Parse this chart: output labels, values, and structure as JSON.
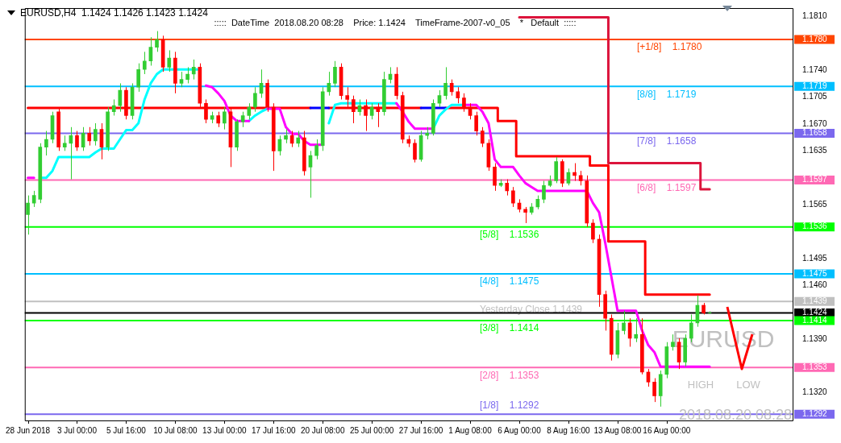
{
  "chart_data": {
    "type": "candlestick",
    "title": "EURUSD,H4  1.1424 1.1426 1.1423 1.1424",
    "annotations": [
      ":::::  DateTime  2018.08.20 08:28    Price: 1.1424    TimeFrame-2007-v0_05    *   Default  :::::",
      "EURUSD",
      "2018.08.20 08:28",
      "HIGH",
      "LOW"
    ],
    "categories": [
      "28 Jun 2018",
      null,
      null,
      null,
      null,
      null,
      null,
      null,
      "3 Jul 00:00",
      null,
      null,
      null,
      null,
      null,
      null,
      null,
      "5 Jul 16:00",
      null,
      null,
      null,
      null,
      null,
      null,
      null,
      "10 Jul 08:00",
      null,
      null,
      null,
      null,
      null,
      null,
      null,
      "13 Jul 00:00",
      null,
      null,
      null,
      null,
      null,
      null,
      null,
      "17 Jul 16:00",
      null,
      null,
      null,
      null,
      null,
      null,
      null,
      "20 Jul 08:00",
      null,
      null,
      null,
      null,
      null,
      null,
      null,
      "25 Jul 00:00",
      null,
      null,
      null,
      null,
      null,
      null,
      null,
      "27 Jul 16:00",
      null,
      null,
      null,
      null,
      null,
      null,
      null,
      "1 Aug 08:00",
      null,
      null,
      null,
      null,
      null,
      null,
      null,
      "6 Aug 00:00",
      null,
      null,
      null,
      null,
      null,
      null,
      null,
      "8 Aug 16:00",
      null,
      null,
      null,
      null,
      null,
      null,
      null,
      "13 Aug 08:00",
      null,
      null,
      null,
      null,
      null,
      null,
      null,
      "16 Aug 00:00",
      null,
      null,
      null,
      null,
      null,
      null,
      null,
      null,
      null,
      null,
      null,
      null,
      null,
      null,
      null,
      null,
      null,
      null,
      null,
      null
    ],
    "ohlc": [
      [
        1.1552,
        1.1577,
        1.1526,
        1.1567
      ],
      [
        1.1567,
        1.1583,
        1.1562,
        1.1577
      ],
      [
        1.1572,
        1.1645,
        1.1567,
        1.164
      ],
      [
        1.164,
        1.1661,
        1.1629,
        1.165
      ],
      [
        1.165,
        1.1686,
        1.1645,
        1.1681
      ],
      [
        1.1686,
        1.1692,
        1.1635,
        1.164
      ],
      [
        1.164,
        1.1655,
        1.1635,
        1.1645
      ],
      [
        1.1645,
        1.1666,
        1.1598,
        1.1655
      ],
      [
        1.1655,
        1.1661,
        1.1635,
        1.164
      ],
      [
        1.164,
        1.1666,
        1.1635,
        1.1658
      ],
      [
        1.1658,
        1.1666,
        1.1642,
        1.1648
      ],
      [
        1.1648,
        1.1671,
        1.1642,
        1.1663
      ],
      [
        1.1663,
        1.1671,
        1.1624,
        1.164
      ],
      [
        1.164,
        1.1692,
        1.1635,
        1.1686
      ],
      [
        1.1686,
        1.1702,
        1.1681,
        1.1694
      ],
      [
        1.1694,
        1.1723,
        1.1686,
        1.1714
      ],
      [
        1.1714,
        1.1718,
        1.1676,
        1.1681
      ],
      [
        1.1681,
        1.1723,
        1.1676,
        1.1718
      ],
      [
        1.1718,
        1.1749,
        1.1712,
        1.1741
      ],
      [
        1.1741,
        1.1764,
        1.1735,
        1.1752
      ],
      [
        1.1752,
        1.1783,
        1.1746,
        1.177
      ],
      [
        1.177,
        1.1791,
        1.1764,
        1.178
      ],
      [
        1.178,
        1.1785,
        1.1738,
        1.1744
      ],
      [
        1.1744,
        1.1766,
        1.1738,
        1.1756
      ],
      [
        1.1756,
        1.1764,
        1.171,
        1.1723
      ],
      [
        1.1723,
        1.1738,
        1.1718,
        1.1728
      ],
      [
        1.1728,
        1.1744,
        1.1723,
        1.1735
      ],
      [
        1.1735,
        1.1754,
        1.1728,
        1.1744
      ],
      [
        1.1744,
        1.1749,
        1.1692,
        1.1697
      ],
      [
        1.1697,
        1.1702,
        1.1671,
        1.1676
      ],
      [
        1.1676,
        1.1686,
        1.1671,
        1.1681
      ],
      [
        1.1681,
        1.1686,
        1.1666,
        1.1671
      ],
      [
        1.1671,
        1.1692,
        1.1663,
        1.1686
      ],
      [
        1.1686,
        1.1692,
        1.1614,
        1.164
      ],
      [
        1.164,
        1.1676,
        1.1635,
        1.1673
      ],
      [
        1.1673,
        1.1686,
        1.1666,
        1.1681
      ],
      [
        1.1681,
        1.1697,
        1.1676,
        1.1692
      ],
      [
        1.1692,
        1.1718,
        1.1686,
        1.171
      ],
      [
        1.171,
        1.1741,
        1.1704,
        1.1723
      ],
      [
        1.1723,
        1.1728,
        1.1686,
        1.1692
      ],
      [
        1.1692,
        1.1697,
        1.1609,
        1.1635
      ],
      [
        1.1635,
        1.1655,
        1.1629,
        1.165
      ],
      [
        1.165,
        1.1663,
        1.1645,
        1.1655
      ],
      [
        1.1655,
        1.1661,
        1.164,
        1.1645
      ],
      [
        1.1645,
        1.1661,
        1.164,
        1.1652
      ],
      [
        1.1652,
        1.1661,
        1.1603,
        1.1609
      ],
      [
        1.1614,
        1.1635,
        1.1574,
        1.1629
      ],
      [
        1.1629,
        1.165,
        1.1624,
        1.1642
      ],
      [
        1.1642,
        1.1718,
        1.1635,
        1.1712
      ],
      [
        1.1712,
        1.1738,
        1.1707,
        1.1723
      ],
      [
        1.1723,
        1.1752,
        1.1718,
        1.1744
      ],
      [
        1.1744,
        1.1749,
        1.1702,
        1.1707
      ],
      [
        1.1707,
        1.1718,
        1.1692,
        1.1702
      ],
      [
        1.1702,
        1.1707,
        1.1671,
        1.1686
      ],
      [
        1.1686,
        1.1702,
        1.1681,
        1.1694
      ],
      [
        1.1694,
        1.1702,
        1.1661,
        1.1681
      ],
      [
        1.1681,
        1.1697,
        1.1676,
        1.1692
      ],
      [
        1.1692,
        1.1697,
        1.1666,
        1.1686
      ],
      [
        1.1686,
        1.1738,
        1.1681,
        1.1728
      ],
      [
        1.1728,
        1.1744,
        1.1723,
        1.1735
      ],
      [
        1.1735,
        1.1744,
        1.1702,
        1.1707
      ],
      [
        1.1707,
        1.1712,
        1.1645,
        1.165
      ],
      [
        1.165,
        1.1655,
        1.164,
        1.1645
      ],
      [
        1.1645,
        1.165,
        1.162,
        1.1624
      ],
      [
        1.1624,
        1.1661,
        1.1621,
        1.1655
      ],
      [
        1.1655,
        1.1666,
        1.165,
        1.1658
      ],
      [
        1.1658,
        1.1702,
        1.1655,
        1.1697
      ],
      [
        1.1697,
        1.1714,
        1.1692,
        1.1707
      ],
      [
        1.1707,
        1.1744,
        1.1702,
        1.1723
      ],
      [
        1.1723,
        1.1728,
        1.1707,
        1.1712
      ],
      [
        1.1712,
        1.1718,
        1.1697,
        1.1704
      ],
      [
        1.1704,
        1.171,
        1.1686,
        1.1692
      ],
      [
        1.1692,
        1.1697,
        1.1676,
        1.1681
      ],
      [
        1.1681,
        1.1686,
        1.1655,
        1.1661
      ],
      [
        1.1661,
        1.1666,
        1.164,
        1.1645
      ],
      [
        1.1645,
        1.165,
        1.1609,
        1.1614
      ],
      [
        1.1614,
        1.1619,
        1.1583,
        1.159
      ],
      [
        1.159,
        1.1598,
        1.1588,
        1.1593
      ],
      [
        1.1593,
        1.1598,
        1.1577,
        1.1583
      ],
      [
        1.1583,
        1.1588,
        1.1562,
        1.1567
      ],
      [
        1.1567,
        1.1572,
        1.1555,
        1.1559
      ],
      [
        1.1559,
        1.1562,
        1.1541,
        1.1555
      ],
      [
        1.1555,
        1.1567,
        1.1552,
        1.1562
      ],
      [
        1.1562,
        1.1577,
        1.1559,
        1.1572
      ],
      [
        1.1572,
        1.1596,
        1.1567,
        1.159
      ],
      [
        1.159,
        1.1603,
        1.1588,
        1.1596
      ],
      [
        1.1596,
        1.1627,
        1.1593,
        1.1621
      ],
      [
        1.1621,
        1.1624,
        1.1588,
        1.1593
      ],
      [
        1.1593,
        1.1612,
        1.159,
        1.1607
      ],
      [
        1.1607,
        1.1619,
        1.1596,
        1.1603
      ],
      [
        1.1603,
        1.1609,
        1.159,
        1.1596
      ],
      [
        1.1596,
        1.1603,
        1.1536,
        1.1541
      ],
      [
        1.1541,
        1.1546,
        1.1515,
        1.152
      ],
      [
        1.152,
        1.1526,
        1.1432,
        1.1448
      ],
      [
        1.1448,
        1.1453,
        1.1401,
        1.1417
      ],
      [
        1.1417,
        1.1422,
        1.1362,
        1.137
      ],
      [
        1.137,
        1.1411,
        1.1365,
        1.1401
      ],
      [
        1.1401,
        1.1427,
        1.1396,
        1.1411
      ],
      [
        1.1411,
        1.1417,
        1.138,
        1.1391
      ],
      [
        1.1391,
        1.1417,
        1.1386,
        1.1396
      ],
      [
        1.1396,
        1.1417,
        1.1344,
        1.1347
      ],
      [
        1.1347,
        1.1351,
        1.1328,
        1.1334
      ],
      [
        1.1334,
        1.1339,
        1.1308,
        1.1316
      ],
      [
        1.1316,
        1.1349,
        1.1302,
        1.1344
      ],
      [
        1.1344,
        1.1386,
        1.1339,
        1.138
      ],
      [
        1.138,
        1.1396,
        1.1375,
        1.1386
      ],
      [
        1.1386,
        1.1391,
        1.1351,
        1.136
      ],
      [
        1.136,
        1.1396,
        1.1354,
        1.1391
      ],
      [
        1.1391,
        1.1422,
        1.1386,
        1.1411
      ],
      [
        1.1411,
        1.1447,
        1.1406,
        1.1434
      ],
      [
        1.1434,
        1.1437,
        1.1422,
        1.1424
      ],
      [
        1.1424,
        1.1426,
        1.1423,
        1.1424
      ],
      null,
      null,
      null,
      null,
      null,
      null,
      null,
      null,
      null,
      null,
      null,
      null,
      null
    ],
    "series": [
      {
        "type": "step",
        "color": "#ff0000",
        "values": [
          1.1691,
          1.1691,
          1.1691,
          1.1691,
          1.1691,
          1.1691,
          1.1691,
          1.1691,
          1.1691,
          1.1691,
          1.1691,
          1.1691,
          1.1691,
          1.1691,
          1.1691,
          1.1691,
          1.1691,
          1.1691,
          1.1691,
          1.1691,
          1.1691,
          1.1691,
          1.1691,
          1.1691,
          1.1691,
          1.1691,
          1.1691,
          1.1691,
          1.1691,
          1.1691,
          1.1691,
          1.1691,
          1.1691,
          1.1691,
          1.1691,
          1.1691,
          1.1691,
          1.1691,
          1.1691,
          1.1691,
          1.1691,
          1.1691,
          1.1691,
          1.1691,
          1.1691,
          1.1691,
          1.1691,
          null,
          null,
          1.1691,
          1.1691,
          1.1691,
          1.1691,
          1.1691,
          1.1691,
          1.1691,
          1.1691,
          1.1691,
          1.1691,
          1.1691,
          1.1691,
          1.1691,
          1.1691,
          1.1691,
          1.1691,
          null,
          null,
          null,
          1.1691,
          1.1691,
          1.1691,
          1.1691,
          1.1691,
          1.1691,
          1.1691,
          1.1691,
          1.1691,
          1.1674,
          1.1674,
          1.1674,
          1.1628,
          1.1628,
          1.1628,
          1.1628,
          1.1628,
          1.1628,
          1.1628,
          1.1628,
          1.1628,
          1.1628,
          1.1628,
          1.1628,
          1.1616,
          1.1616,
          1.1616,
          1.1517,
          1.1517,
          1.1517,
          1.1517,
          1.1517,
          1.1517,
          1.1448,
          1.1448,
          1.1448,
          1.1448,
          1.1448,
          1.1448,
          1.1448,
          1.1448,
          1.1448,
          1.1448,
          1.1448,
          null,
          null,
          null,
          null,
          null,
          null,
          null,
          null,
          null,
          null,
          null,
          null,
          null
        ]
      },
      {
        "type": "step",
        "color": "#0000ff",
        "values": [
          null,
          null,
          null,
          null,
          null,
          null,
          null,
          null,
          null,
          null,
          null,
          null,
          null,
          null,
          null,
          null,
          null,
          null,
          null,
          null,
          null,
          null,
          null,
          null,
          null,
          null,
          null,
          null,
          null,
          null,
          null,
          null,
          null,
          null,
          null,
          null,
          null,
          null,
          null,
          null,
          null,
          null,
          null,
          null,
          null,
          null,
          1.1691,
          1.1691,
          1.1691,
          1.1691,
          null,
          null,
          null,
          null,
          null,
          null,
          null,
          null,
          null,
          null,
          null,
          null,
          null,
          null,
          1.1691,
          1.1691,
          1.1691,
          1.1691,
          1.1691,
          null,
          null,
          null,
          null,
          null,
          null,
          null,
          null,
          null,
          null,
          null,
          null,
          null,
          null,
          null,
          null,
          null,
          null,
          null,
          null,
          null,
          null,
          null,
          null,
          null,
          null,
          null,
          null,
          null,
          null,
          null,
          null,
          null,
          null,
          null,
          null,
          null,
          null,
          null,
          null,
          null,
          null,
          null,
          null,
          null,
          null,
          null,
          null,
          null,
          null,
          null,
          null,
          null,
          null,
          null,
          null
        ]
      },
      {
        "type": "step",
        "color": "#dc143c",
        "values": [
          null,
          null,
          null,
          null,
          null,
          null,
          null,
          null,
          null,
          null,
          null,
          null,
          null,
          null,
          null,
          null,
          null,
          null,
          null,
          null,
          null,
          null,
          null,
          null,
          null,
          null,
          null,
          null,
          null,
          null,
          null,
          null,
          null,
          null,
          null,
          null,
          null,
          null,
          null,
          null,
          null,
          null,
          null,
          null,
          null,
          null,
          null,
          null,
          null,
          null,
          null,
          null,
          null,
          null,
          null,
          null,
          null,
          null,
          null,
          null,
          null,
          null,
          null,
          null,
          null,
          null,
          null,
          null,
          null,
          null,
          null,
          null,
          null,
          null,
          null,
          null,
          null,
          null,
          null,
          null,
          1.1809,
          1.1809,
          1.1809,
          1.1809,
          1.1809,
          1.1809,
          1.1809,
          1.1809,
          1.1809,
          1.1809,
          1.1809,
          1.1809,
          1.1809,
          1.1809,
          1.1809,
          1.1619,
          1.1619,
          1.1619,
          1.1619,
          1.1619,
          1.1619,
          1.1619,
          1.1619,
          1.1619,
          1.1619,
          1.1619,
          1.1619,
          1.1619,
          1.1619,
          1.1619,
          1.1585,
          1.1585,
          null,
          null,
          null,
          null,
          null,
          null,
          null,
          null,
          null,
          null,
          null,
          null,
          null
        ]
      },
      {
        "type": "line",
        "color": "#00ffff",
        "values": [
          null,
          null,
          1.16,
          1.16,
          1.1609,
          1.1627,
          1.1627,
          1.1627,
          1.1627,
          1.1627,
          1.1627,
          1.1633,
          1.1638,
          1.1638,
          1.1638,
          1.165,
          1.1662,
          1.1662,
          1.1671,
          1.1702,
          1.1723,
          1.1735,
          1.1741,
          1.1741,
          1.1741,
          1.1741,
          1.1741,
          1.1741,
          1.1741,
          null,
          null,
          null,
          null,
          null,
          null,
          null,
          1.1674,
          1.1681,
          1.1686,
          1.169,
          null,
          null,
          null,
          null,
          null,
          null,
          null,
          null,
          null,
          1.1671,
          1.1695,
          1.1697,
          1.1697,
          1.1697,
          1.1697,
          1.1697,
          1.1697,
          1.1697,
          1.1697,
          1.1697,
          1.1697,
          null,
          null,
          null,
          null,
          null,
          1.1664,
          1.1681,
          1.1689,
          1.1695,
          1.1695,
          1.1695,
          null,
          null,
          null,
          null,
          null,
          null,
          null,
          null,
          null,
          null,
          null,
          null,
          null,
          null,
          null,
          null,
          null,
          null,
          null,
          null,
          null,
          null,
          null,
          null,
          null,
          null,
          null,
          null,
          null,
          null,
          null,
          null,
          null,
          null,
          null,
          null,
          null,
          null,
          null,
          null,
          null,
          null,
          null,
          null,
          null,
          null,
          null,
          null,
          null,
          null,
          null,
          null,
          null
        ]
      },
      {
        "type": "line",
        "color": "#ff00ff",
        "values": [
          1.16,
          1.16,
          null,
          null,
          null,
          null,
          null,
          null,
          null,
          null,
          null,
          null,
          null,
          null,
          null,
          null,
          null,
          null,
          null,
          null,
          null,
          null,
          null,
          null,
          null,
          null,
          null,
          null,
          null,
          1.172,
          1.1718,
          1.171,
          1.17,
          1.1681,
          1.1674,
          1.1674,
          1.1674,
          null,
          null,
          1.169,
          1.169,
          1.169,
          1.1666,
          1.1657,
          1.1657,
          1.1648,
          1.1643,
          1.1643,
          1.1643,
          null,
          null,
          null,
          null,
          null,
          null,
          null,
          null,
          null,
          null,
          null,
          1.1697,
          1.1686,
          1.1673,
          1.1664,
          1.1664,
          1.1664,
          1.1664,
          null,
          null,
          null,
          null,
          1.1695,
          1.1695,
          1.1695,
          1.1686,
          1.1671,
          1.1624,
          1.1614,
          1.1614,
          1.1614,
          1.1603,
          1.1593,
          1.1588,
          1.1583,
          1.1583,
          1.1583,
          1.1583,
          1.1583,
          1.1583,
          1.1583,
          1.1583,
          1.1583,
          1.1567,
          1.1555,
          1.1515,
          1.1471,
          1.1427,
          1.1427,
          1.1427,
          1.1427,
          1.1401,
          1.1382,
          1.1373,
          1.1354,
          1.1354,
          1.1354,
          1.1354,
          1.1354,
          1.1354,
          1.1354,
          1.1354,
          1.1354,
          null,
          null,
          null,
          null,
          null,
          null,
          null,
          null,
          null,
          null,
          null,
          null,
          null
        ]
      }
    ],
    "ylim": [
      1.1284,
      1.1821
    ],
    "yticks": [
      {
        "value": 1.181,
        "label": "1.1810"
      },
      {
        "value": 1.178,
        "label": "1.1780"
      },
      {
        "value": 1.174,
        "label": "1.1740"
      },
      {
        "value": 1.1719,
        "label": "1.1719"
      },
      {
        "value": 1.1705,
        "label": "1.1705"
      },
      {
        "value": 1.167,
        "label": "1.1670"
      },
      {
        "value": 1.1658,
        "label": "1.1658"
      },
      {
        "value": 1.1635,
        "label": "1.1635"
      },
      {
        "value": 1.1597,
        "label": "1.1597"
      },
      {
        "value": 1.1565,
        "label": "1.1565"
      },
      {
        "value": 1.1536,
        "label": "1.1536"
      },
      {
        "value": 1.1495,
        "label": "1.1495"
      },
      {
        "value": 1.1475,
        "label": "1.1475"
      },
      {
        "value": 1.146,
        "label": "1.1460"
      },
      {
        "value": 1.1439,
        "label": "1.1439"
      },
      {
        "value": 1.1424,
        "label": "1.1424"
      },
      {
        "value": 1.1414,
        "label": "1.1414"
      },
      {
        "value": 1.139,
        "label": "1.1390"
      },
      {
        "value": 1.1353,
        "label": "1.1353"
      },
      {
        "value": 1.132,
        "label": "1.1320"
      },
      {
        "value": 1.1292,
        "label": "1.1292"
      }
    ],
    "ref_lines": [
      {
        "axis": "y",
        "value": 1.178,
        "label": "[+1/8]    1.1780",
        "color": "#ff4500"
      },
      {
        "axis": "y",
        "value": 1.1719,
        "label": "[8/8]    1.1719",
        "color": "#00bfff"
      },
      {
        "axis": "y",
        "value": 1.1658,
        "label": "[7/8]    1.1658",
        "color": "#7b68ee"
      },
      {
        "axis": "y",
        "value": 1.1597,
        "label": "[6/8]    1.1597",
        "color": "#ff69b4"
      },
      {
        "axis": "y",
        "value": 1.1536,
        "label": "[5/8]    1.1536",
        "color": "#00ff00"
      },
      {
        "axis": "y",
        "value": 1.1475,
        "label": "[4/8]    1.1475",
        "color": "#00bfff"
      },
      {
        "axis": "y",
        "value": 1.1439,
        "label": "Yesterday Close 1.1439",
        "color": "#c0c0c0"
      },
      {
        "axis": "y",
        "value": 1.1424,
        "label": null,
        "color": "#000000"
      },
      {
        "axis": "y",
        "value": 1.1414,
        "label": "[3/8]    1.1414",
        "color": "#00ff00"
      },
      {
        "axis": "y",
        "value": 1.1353,
        "label": "[2/8]    1.1353",
        "color": "#ff69b4"
      },
      {
        "axis": "y",
        "value": 1.1292,
        "label": "[1/8]    1.1292",
        "color": "#7b68ee"
      }
    ],
    "grid": false,
    "legend": false,
    "marker": "none"
  }
}
